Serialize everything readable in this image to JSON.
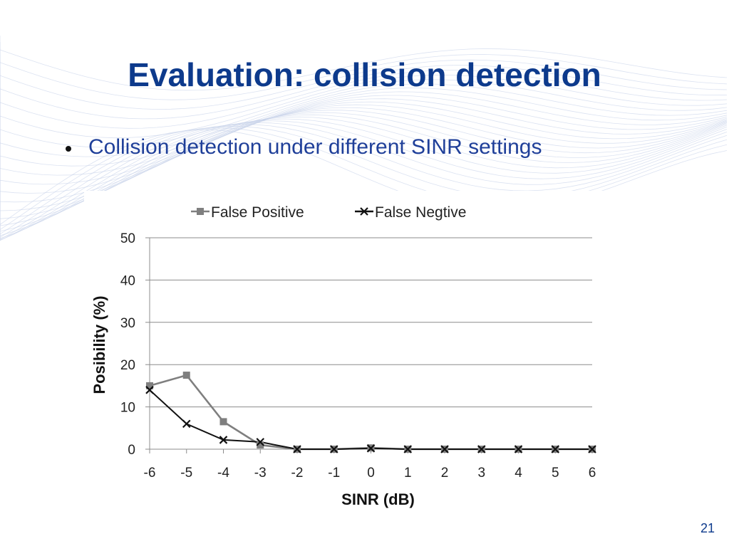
{
  "slide": {
    "title": "Evaluation: collision detection",
    "bullet": "Collision detection under different SINR settings",
    "page_number": "21"
  },
  "colors": {
    "title": "#0d3a8c",
    "bullet_text": "#1f3f99",
    "false_positive": "#7f7f7f",
    "false_negative": "#111111",
    "grid": "#8c8c8c"
  },
  "chart_data": {
    "type": "line",
    "title": "",
    "xlabel": "SINR (dB)",
    "ylabel": "Posibility (%)",
    "x": [
      -6,
      -5,
      -4,
      -3,
      -2,
      -1,
      0,
      1,
      2,
      3,
      4,
      5,
      6
    ],
    "xlim": [
      -6,
      6
    ],
    "ylim": [
      0,
      50
    ],
    "yticks": [
      0,
      10,
      20,
      30,
      40,
      50
    ],
    "grid": "horizontal",
    "legend_position": "top",
    "series": [
      {
        "name": "False Positive",
        "marker": "square",
        "color": "#7f7f7f",
        "values": [
          15,
          17.5,
          6.5,
          1,
          0,
          0,
          0.3,
          0,
          0,
          0,
          0,
          0,
          0
        ]
      },
      {
        "name": "False Negtive",
        "marker": "x",
        "color": "#111111",
        "values": [
          14,
          6,
          2.2,
          1.7,
          0,
          0,
          0.2,
          0,
          0,
          0,
          0,
          0,
          0
        ]
      }
    ]
  }
}
